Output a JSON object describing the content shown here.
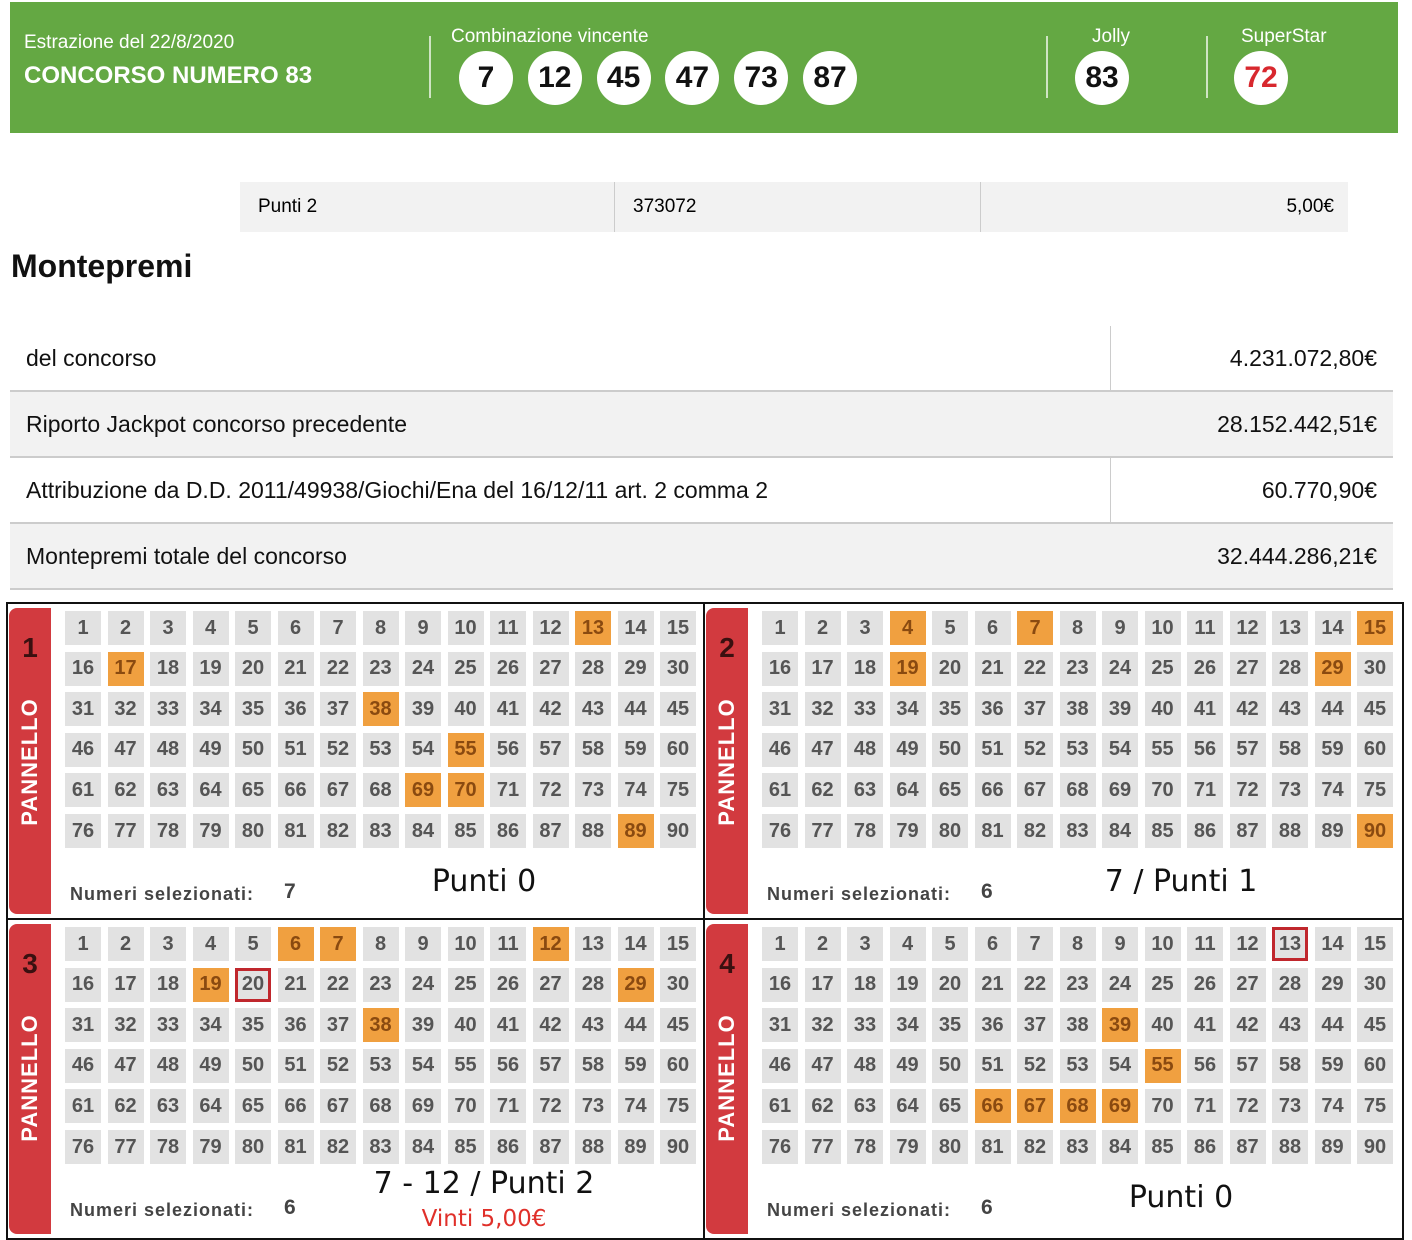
{
  "header": {
    "date": "Estrazione del 22/8/2020",
    "title": "CONCORSO NUMERO 83",
    "combo_label": "Combinazione vincente",
    "numbers": [
      7,
      12,
      45,
      47,
      73,
      87
    ],
    "jolly_label": "Jolly",
    "jolly": 83,
    "superstar_label": "SuperStar",
    "superstar": 72
  },
  "prize_row": [
    "Punti 2",
    "373072",
    "5,00€"
  ],
  "montepremi": {
    "title": "Montepremi",
    "rows": [
      [
        "del concorso",
        "4.231.072,80€"
      ],
      [
        "Riporto Jackpot concorso precedente",
        "28.152.442,51€"
      ],
      [
        "Attribuzione da D.D. 2011/49938/Giochi/Ena del 16/12/11 art. 2 comma 2",
        "60.770,90€"
      ],
      [
        "Montepremi totale del concorso",
        "32.444.286,21€"
      ]
    ]
  },
  "panel_label": "PANNELLO",
  "selected_label": "Numeri selezionati:",
  "grid_numbers": [
    1,
    2,
    3,
    4,
    5,
    6,
    7,
    8,
    9,
    10,
    11,
    12,
    13,
    14,
    15,
    16,
    17,
    18,
    19,
    20,
    21,
    22,
    23,
    24,
    25,
    26,
    27,
    28,
    29,
    30,
    31,
    32,
    33,
    34,
    35,
    36,
    37,
    38,
    39,
    40,
    41,
    42,
    43,
    44,
    45,
    46,
    47,
    48,
    49,
    50,
    51,
    52,
    53,
    54,
    55,
    56,
    57,
    58,
    59,
    60,
    61,
    62,
    63,
    64,
    65,
    66,
    67,
    68,
    69,
    70,
    71,
    72,
    73,
    74,
    75,
    76,
    77,
    78,
    79,
    80,
    81,
    82,
    83,
    84,
    85,
    86,
    87,
    88,
    89,
    90
  ],
  "panels": [
    {
      "number": 1,
      "selected": [
        13,
        17,
        38,
        55,
        69,
        70,
        89
      ],
      "boxed": [],
      "count": 7,
      "note": "Punti 0"
    },
    {
      "number": 2,
      "selected": [
        4,
        7,
        15,
        19,
        29,
        90
      ],
      "boxed": [],
      "count": 6,
      "note": "7 / Punti 1"
    },
    {
      "number": 3,
      "selected": [
        6,
        7,
        12,
        19,
        29,
        38
      ],
      "boxed": [
        20
      ],
      "count": 6,
      "note": "7 - 12 / Punti 2",
      "win": "Vinti 5,00€"
    },
    {
      "number": 4,
      "selected": [
        39,
        55,
        66,
        67,
        68,
        69
      ],
      "boxed": [
        13
      ],
      "count": 6,
      "note": "Punti 0"
    }
  ]
}
